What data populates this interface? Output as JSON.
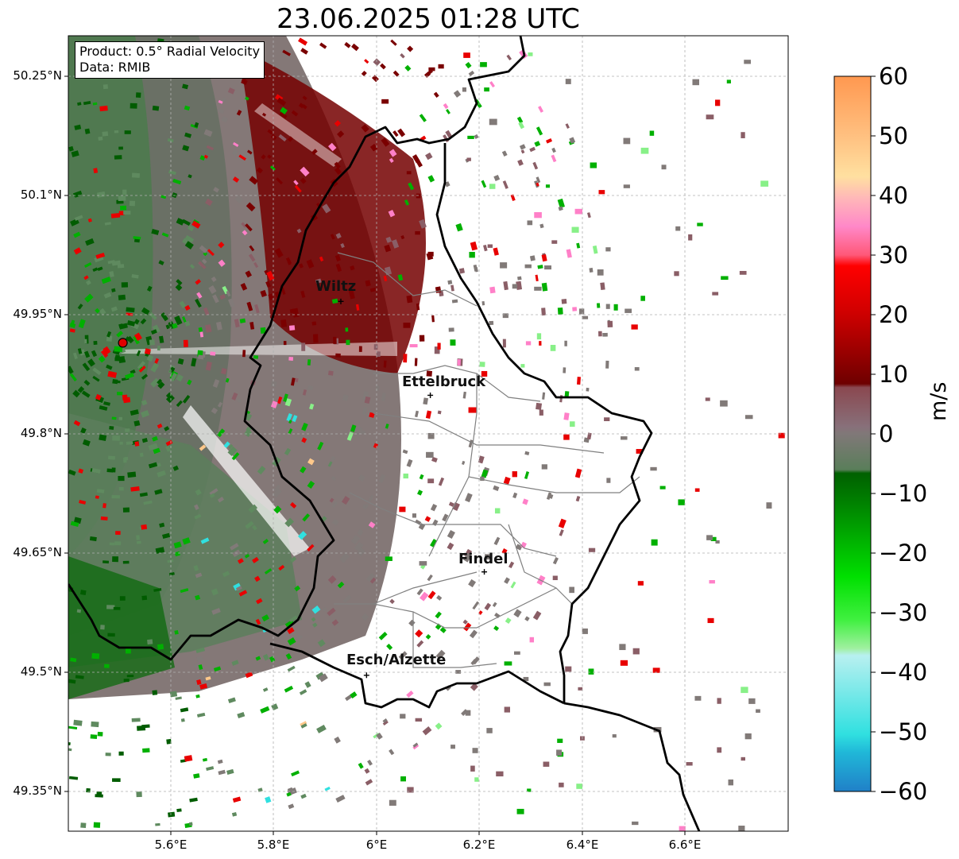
{
  "title": "23.06.2025 01:28 UTC",
  "info": {
    "product": "Product: 0.5° Radial Velocity",
    "data": "Data: RMIB"
  },
  "map": {
    "lon_range": [
      5.4,
      6.8
    ],
    "lat_range": [
      49.3,
      50.3
    ],
    "lat_ticks": [
      "50.25°N",
      "50.1°N",
      "49.95°N",
      "49.8°N",
      "49.65°N",
      "49.5°N",
      "49.35°N"
    ],
    "lon_ticks": [
      "5.6°E",
      "5.8°E",
      "6°E",
      "6.2°E",
      "6.4°E",
      "6.6°E"
    ],
    "radar_site": {
      "lon": 5.506,
      "lat": 49.914
    },
    "cities": [
      {
        "name": "Wiltz",
        "lon": 5.93,
        "lat": 49.966
      },
      {
        "name": "Ettelbruck",
        "lon": 6.104,
        "lat": 49.848
      },
      {
        "name": "Findel",
        "lon": 6.209,
        "lat": 49.626
      },
      {
        "name": "Esch/Alzette",
        "lon": 5.98,
        "lat": 49.496
      }
    ]
  },
  "colorbar": {
    "unit": "m/s",
    "range": [
      -60,
      60
    ],
    "ticks": [
      "60",
      "50",
      "40",
      "30",
      "20",
      "10",
      "0",
      "−10",
      "−20",
      "−30",
      "−40",
      "−50",
      "−60"
    ],
    "colors": {
      "green_dark": "#005c00",
      "green_mid": "#00b000",
      "green_light": "#88f088",
      "gray_green": "#5f8a5f",
      "gray": "#817a78",
      "mauve": "#8a5e66",
      "red_dark": "#7a0000",
      "red": "#e80000",
      "pink": "#ff80c8",
      "peach": "#ffc88a",
      "orange": "#ff9850",
      "cyan": "#30e0e0",
      "blue": "#2080c8"
    }
  }
}
